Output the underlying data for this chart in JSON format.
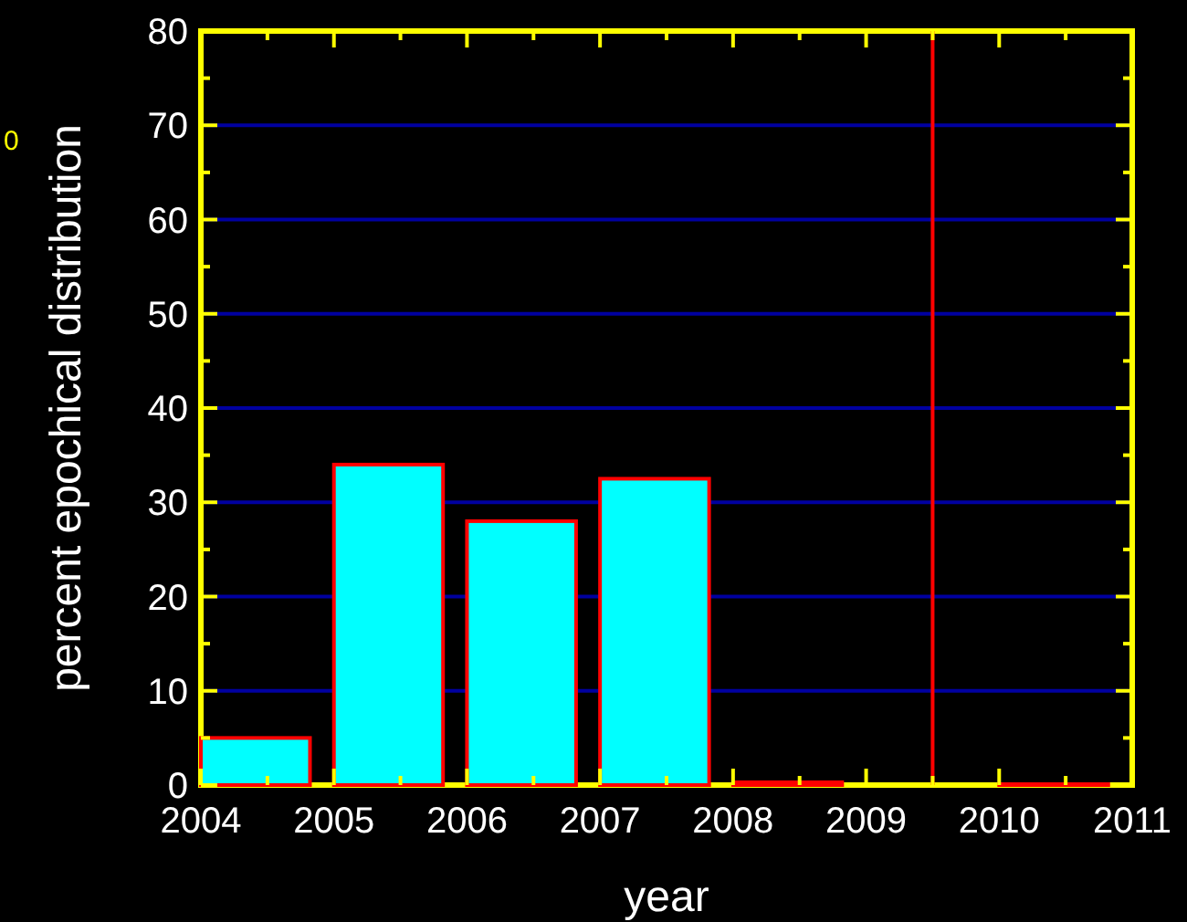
{
  "chart_data": {
    "type": "bar",
    "xlabel": "year",
    "ylabel": "percent epochical distribution",
    "x": [
      2004.41,
      2005.41,
      2006.41,
      2007.41,
      2008.41,
      2010.41
    ],
    "values": [
      5,
      34,
      28,
      32.5,
      0.3,
      0.1
    ],
    "color": "#00ffff",
    "xlim": [
      2004,
      2011
    ],
    "xticks": [
      2004,
      2005,
      2006,
      2007,
      2008,
      2009,
      2010,
      2011
    ],
    "ylim": [
      0,
      80
    ],
    "yticks": [
      0,
      10,
      20,
      30,
      40,
      50,
      60,
      70,
      80
    ],
    "grid": "y",
    "ref_lines": [
      {
        "axis": "x",
        "value": 2009.5,
        "color": "#ff0000"
      }
    ],
    "annotations": [
      "0"
    ]
  }
}
